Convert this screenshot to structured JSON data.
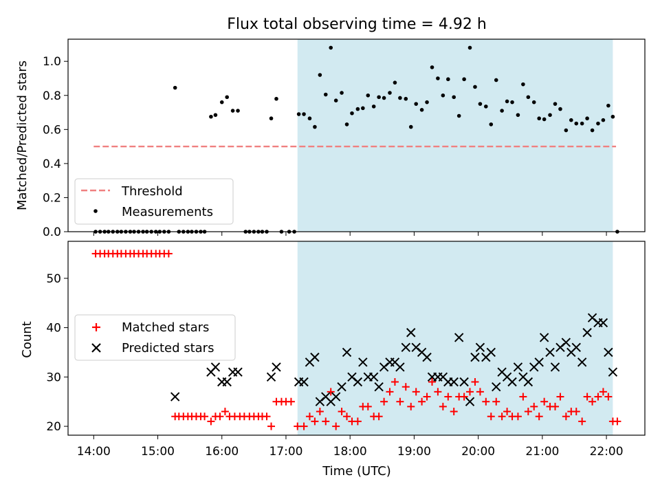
{
  "chart_data": [
    {
      "type": "scatter",
      "title": "Flux total observing time = 4.92 h",
      "xlabel": "",
      "ylabel": "Matched/Predicted stars",
      "xlim": [
        13.6,
        22.6
      ],
      "ylim": [
        0,
        1.13
      ],
      "yticks": [
        "0.0",
        "0.2",
        "0.4",
        "0.6",
        "0.8",
        "1.0"
      ],
      "shaded_interval": {
        "x": [
          17.18,
          22.1
        ],
        "color": "#add8e6"
      },
      "legend": {
        "placement": "lower-left",
        "entries": [
          "Threshold",
          "Measurements"
        ]
      },
      "series": [
        {
          "name": "Threshold",
          "style": "dashed-line",
          "color": "#f08080",
          "x": [
            14.0,
            22.15
          ],
          "y": [
            0.5,
            0.5
          ]
        },
        {
          "name": "Measurements",
          "style": "dot",
          "color": "#000000",
          "x": [
            14.03,
            14.1,
            14.17,
            14.23,
            14.3,
            14.37,
            14.43,
            14.5,
            14.57,
            14.63,
            14.7,
            14.77,
            14.83,
            14.9,
            14.97,
            15.03,
            15.1,
            15.17,
            15.27,
            15.33,
            15.4,
            15.47,
            15.53,
            15.6,
            15.67,
            15.73,
            15.83,
            15.9,
            16.0,
            16.08,
            16.17,
            16.25,
            16.37,
            16.43,
            16.5,
            16.57,
            16.63,
            16.7,
            16.77,
            16.85,
            16.93,
            17.05,
            17.13,
            17.2,
            17.28,
            17.37,
            17.45,
            17.53,
            17.62,
            17.7,
            17.78,
            17.87,
            17.95,
            18.03,
            18.12,
            18.2,
            18.28,
            18.37,
            18.45,
            18.53,
            18.62,
            18.7,
            18.78,
            18.87,
            18.95,
            19.03,
            19.12,
            19.2,
            19.28,
            19.37,
            19.45,
            19.53,
            19.62,
            19.7,
            19.78,
            19.87,
            19.95,
            20.03,
            20.12,
            20.2,
            20.28,
            20.37,
            20.45,
            20.53,
            20.62,
            20.7,
            20.78,
            20.87,
            20.95,
            21.03,
            21.12,
            21.2,
            21.28,
            21.37,
            21.45,
            21.53,
            21.62,
            21.7,
            21.78,
            21.87,
            21.95,
            22.03,
            22.1,
            22.17
          ],
          "y": [
            0,
            0,
            0,
            0,
            0,
            0,
            0,
            0,
            0,
            0,
            0,
            0,
            0,
            0,
            0,
            0,
            0,
            0,
            0.845,
            0,
            0,
            0,
            0,
            0,
            0,
            0,
            0.675,
            0.685,
            0.76,
            0.79,
            0.71,
            0.71,
            0,
            0,
            0,
            0,
            0,
            0,
            0.665,
            0.78,
            0,
            0,
            0,
            0.69,
            0.69,
            0.665,
            0.615,
            0.92,
            0.805,
            1.08,
            0.77,
            0.815,
            0.63,
            0.695,
            0.72,
            0.725,
            0.8,
            0.735,
            0.79,
            0.785,
            0.815,
            0.875,
            0.785,
            0.78,
            0.615,
            0.75,
            0.715,
            0.76,
            0.965,
            0.9,
            0.8,
            0.895,
            0.79,
            0.68,
            0.895,
            1.08,
            0.85,
            0.75,
            0.735,
            0.63,
            0.89,
            0.71,
            0.765,
            0.76,
            0.685,
            0.865,
            0.79,
            0.76,
            0.665,
            0.66,
            0.685,
            0.75,
            0.72,
            0.595,
            0.655,
            0.635,
            0.635,
            0.665,
            0.595,
            0.635,
            0.655,
            0.74,
            0.675,
            0
          ]
        }
      ]
    },
    {
      "type": "scatter",
      "title": "",
      "xlabel": "Time (UTC)",
      "ylabel": "Count",
      "xlim": [
        13.6,
        22.6
      ],
      "ylim": [
        18.2,
        57.5
      ],
      "yticks": [
        "20",
        "30",
        "40",
        "50"
      ],
      "xticks": [
        "14:00",
        "15:00",
        "16:00",
        "17:00",
        "18:00",
        "19:00",
        "20:00",
        "21:00",
        "22:00"
      ],
      "shaded_interval": {
        "x": [
          17.18,
          22.1
        ],
        "color": "#add8e6"
      },
      "legend": {
        "placement": "center-left",
        "entries": [
          "Matched stars",
          "Predicted stars"
        ]
      },
      "series": [
        {
          "name": "Matched stars",
          "marker": "plus",
          "color": "#ff0000",
          "x": [
            14.03,
            14.1,
            14.17,
            14.23,
            14.3,
            14.37,
            14.43,
            14.5,
            14.57,
            14.63,
            14.7,
            14.77,
            14.83,
            14.9,
            14.97,
            15.03,
            15.1,
            15.17,
            15.27,
            15.33,
            15.4,
            15.47,
            15.53,
            15.6,
            15.67,
            15.73,
            15.83,
            15.9,
            15.97,
            16.05,
            16.12,
            16.2,
            16.28,
            16.35,
            16.43,
            16.5,
            16.57,
            16.63,
            16.7,
            16.77,
            16.85,
            16.93,
            17.0,
            17.08,
            17.18,
            17.28,
            17.37,
            17.45,
            17.53,
            17.62,
            17.7,
            17.78,
            17.87,
            17.95,
            18.03,
            18.12,
            18.2,
            18.28,
            18.37,
            18.45,
            18.53,
            18.62,
            18.7,
            18.78,
            18.87,
            18.95,
            19.03,
            19.12,
            19.2,
            19.28,
            19.37,
            19.45,
            19.53,
            19.62,
            19.7,
            19.78,
            19.87,
            19.95,
            20.03,
            20.12,
            20.2,
            20.28,
            20.37,
            20.45,
            20.53,
            20.62,
            20.7,
            20.78,
            20.87,
            20.95,
            21.03,
            21.12,
            21.2,
            21.28,
            21.37,
            21.45,
            21.53,
            21.62,
            21.7,
            21.78,
            21.87,
            21.95,
            22.03,
            22.1,
            22.17
          ],
          "y": [
            55,
            55,
            55,
            55,
            55,
            55,
            55,
            55,
            55,
            55,
            55,
            55,
            55,
            55,
            55,
            55,
            55,
            55,
            22,
            22,
            22,
            22,
            22,
            22,
            22,
            22,
            21,
            22,
            22,
            23,
            22,
            22,
            22,
            22,
            22,
            22,
            22,
            22,
            22,
            20,
            25,
            25,
            25,
            25,
            20,
            20,
            22,
            21,
            23,
            21,
            27,
            20,
            23,
            22,
            21,
            21,
            24,
            24,
            22,
            22,
            25,
            27,
            29,
            25,
            28,
            24,
            27,
            25,
            26,
            29,
            27,
            24,
            26,
            23,
            26,
            26,
            27,
            29,
            27,
            25,
            22,
            25,
            22,
            23,
            22,
            22,
            26,
            23,
            24,
            22,
            25,
            24,
            24,
            26,
            22,
            23,
            23,
            21,
            26,
            25,
            26,
            27,
            26,
            21,
            21
          ]
        },
        {
          "name": "Predicted stars",
          "marker": "x",
          "color": "#000000",
          "x": [
            15.27,
            15.83,
            15.9,
            16.0,
            16.08,
            16.17,
            16.25,
            16.77,
            16.85,
            17.2,
            17.28,
            17.37,
            17.45,
            17.53,
            17.62,
            17.7,
            17.78,
            17.87,
            17.95,
            18.03,
            18.12,
            18.2,
            18.28,
            18.37,
            18.45,
            18.53,
            18.62,
            18.7,
            18.78,
            18.87,
            18.95,
            19.03,
            19.12,
            19.2,
            19.28,
            19.37,
            19.45,
            19.53,
            19.62,
            19.7,
            19.78,
            19.87,
            19.95,
            20.03,
            20.12,
            20.2,
            20.28,
            20.37,
            20.45,
            20.53,
            20.62,
            20.7,
            20.78,
            20.87,
            20.95,
            21.03,
            21.12,
            21.2,
            21.28,
            21.37,
            21.45,
            21.53,
            21.62,
            21.7,
            21.78,
            21.87,
            21.95,
            22.03,
            22.1
          ],
          "y": [
            26,
            31,
            32,
            29,
            29,
            31,
            31,
            30,
            32,
            29,
            29,
            33,
            34,
            25,
            26,
            25,
            26,
            28,
            35,
            30,
            29,
            33,
            30,
            30,
            28,
            32,
            33,
            33,
            32,
            36,
            39,
            36,
            35,
            34,
            30,
            30,
            30,
            29,
            29,
            38,
            29,
            25,
            34,
            36,
            34,
            35,
            28,
            31,
            30,
            29,
            32,
            30,
            29,
            32,
            33,
            38,
            35,
            32,
            36,
            37,
            35,
            36,
            33,
            39,
            42,
            41,
            41,
            35,
            31
          ]
        }
      ]
    }
  ]
}
